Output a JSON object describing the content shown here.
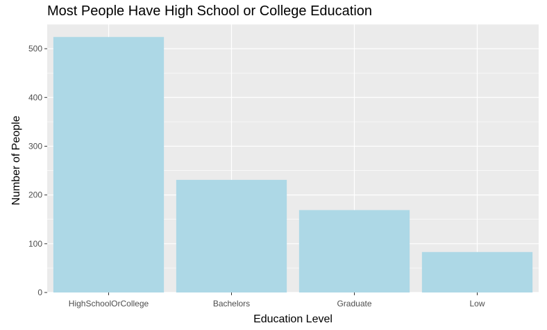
{
  "chart_data": {
    "type": "bar",
    "title": "Most People Have High School or College Education",
    "xlabel": "Education Level",
    "ylabel": "Number of People",
    "categories": [
      "HighSchoolOrCollege",
      "Bachelors",
      "Graduate",
      "Low"
    ],
    "values": [
      524,
      231,
      169,
      83
    ],
    "ylim": [
      0,
      550
    ],
    "yticks": [
      0,
      100,
      200,
      300,
      400,
      500
    ],
    "grid": true,
    "legend": "none",
    "colors": {
      "bar": "#add8e6",
      "panel": "#ebebeb",
      "grid": "#ffffff",
      "tick": "#333333"
    }
  }
}
